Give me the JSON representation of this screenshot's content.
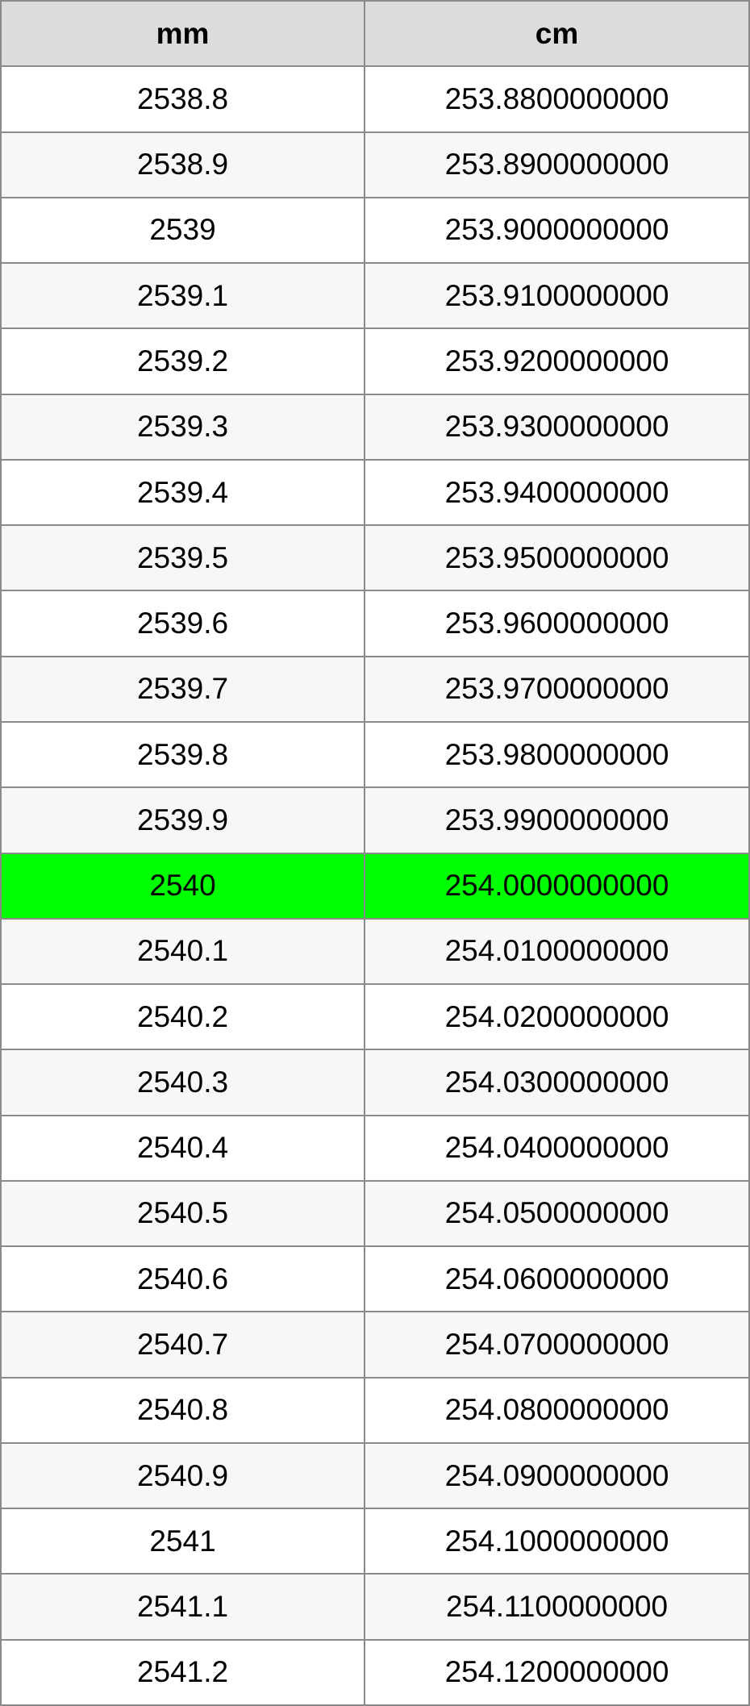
{
  "table": {
    "header": [
      "mm",
      "cm"
    ],
    "rows": [
      [
        "2538.8",
        "253.8800000000"
      ],
      [
        "2538.9",
        "253.8900000000"
      ],
      [
        "2539",
        "253.9000000000"
      ],
      [
        "2539.1",
        "253.9100000000"
      ],
      [
        "2539.2",
        "253.9200000000"
      ],
      [
        "2539.3",
        "253.9300000000"
      ],
      [
        "2539.4",
        "253.9400000000"
      ],
      [
        "2539.5",
        "253.9500000000"
      ],
      [
        "2539.6",
        "253.9600000000"
      ],
      [
        "2539.7",
        "253.9700000000"
      ],
      [
        "2539.8",
        "253.9800000000"
      ],
      [
        "2539.9",
        "253.9900000000"
      ],
      [
        "2540",
        "254.0000000000"
      ],
      [
        "2540.1",
        "254.0100000000"
      ],
      [
        "2540.2",
        "254.0200000000"
      ],
      [
        "2540.3",
        "254.0300000000"
      ],
      [
        "2540.4",
        "254.0400000000"
      ],
      [
        "2540.5",
        "254.0500000000"
      ],
      [
        "2540.6",
        "254.0600000000"
      ],
      [
        "2540.7",
        "254.0700000000"
      ],
      [
        "2540.8",
        "254.0800000000"
      ],
      [
        "2540.9",
        "254.0900000000"
      ],
      [
        "2541",
        "254.1000000000"
      ],
      [
        "2541.1",
        "254.1100000000"
      ],
      [
        "2541.2",
        "254.1200000000"
      ]
    ],
    "highlight": {
      "row": 12,
      "color": "#00ff00"
    }
  }
}
